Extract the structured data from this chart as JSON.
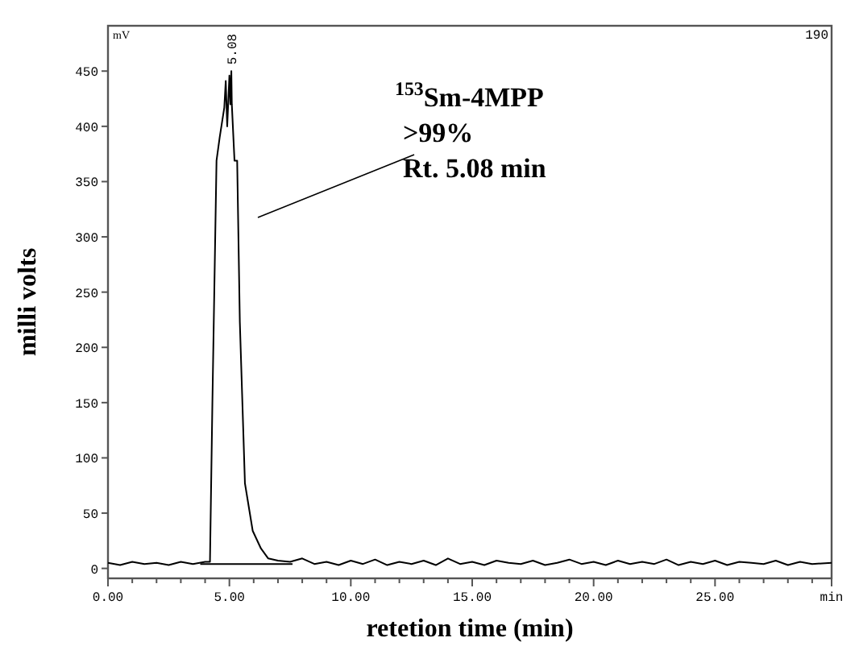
{
  "chart_data": {
    "type": "line",
    "xlabel": "retetion time (min)",
    "ylabel": "milli volts",
    "xlim": [
      0,
      29.8
    ],
    "ylim": [
      -9,
      491
    ],
    "xticks": [
      {
        "value": 0,
        "label": "0.00"
      },
      {
        "value": 1,
        "label": null
      },
      {
        "value": 2,
        "label": null
      },
      {
        "value": 3,
        "label": null
      },
      {
        "value": 4,
        "label": null
      },
      {
        "value": 5,
        "label": "5.00"
      },
      {
        "value": 6,
        "label": null
      },
      {
        "value": 7,
        "label": null
      },
      {
        "value": 8,
        "label": null
      },
      {
        "value": 9,
        "label": null
      },
      {
        "value": 10,
        "label": "10.00"
      },
      {
        "value": 11,
        "label": null
      },
      {
        "value": 12,
        "label": null
      },
      {
        "value": 13,
        "label": null
      },
      {
        "value": 14,
        "label": null
      },
      {
        "value": 15,
        "label": "15.00"
      },
      {
        "value": 16,
        "label": null
      },
      {
        "value": 17,
        "label": null
      },
      {
        "value": 18,
        "label": null
      },
      {
        "value": 19,
        "label": null
      },
      {
        "value": 20,
        "label": "20.00"
      },
      {
        "value": 21,
        "label": null
      },
      {
        "value": 22,
        "label": null
      },
      {
        "value": 23,
        "label": null
      },
      {
        "value": 24,
        "label": null
      },
      {
        "value": 25,
        "label": "25.00"
      },
      {
        "value": 26,
        "label": null
      },
      {
        "value": 27,
        "label": null
      },
      {
        "value": 28,
        "label": null
      },
      {
        "value": 29,
        "label": null
      },
      {
        "value": 29.8,
        "label": "min"
      }
    ],
    "yticks": [
      0,
      50,
      100,
      150,
      200,
      250,
      300,
      350,
      400,
      450
    ],
    "grid": false,
    "marker": "none",
    "line_style": "solid",
    "series": [
      {
        "color": "#000000",
        "x": [
          0,
          0.5,
          1,
          1.5,
          2,
          2.5,
          3,
          3.5,
          4,
          4.2,
          4.3,
          4.47,
          4.6,
          4.79,
          4.85,
          4.91,
          5.0,
          5.04,
          5.08,
          5.1,
          5.21,
          5.32,
          5.43,
          5.64,
          5.96,
          6.3,
          6.6,
          7.0,
          7.5,
          8,
          8.5,
          9,
          9.5,
          10,
          10.5,
          11,
          11.5,
          12,
          12.5,
          13,
          13.5,
          14,
          14.5,
          15,
          15.5,
          16,
          16.5,
          17,
          17.5,
          18,
          18.5,
          19,
          19.5,
          20,
          20.5,
          21,
          21.5,
          22,
          22.5,
          23,
          23.5,
          24,
          24.5,
          25,
          25.5,
          26,
          26.5,
          27,
          27.5,
          28,
          28.5,
          29,
          29.8
        ],
        "values": [
          5,
          3,
          6,
          4,
          5,
          3,
          6,
          4,
          6,
          6,
          150,
          369,
          390,
          417,
          441,
          400,
          446,
          420,
          450,
          420,
          369,
          369,
          223,
          77,
          34,
          18,
          9,
          7,
          6,
          9,
          4,
          6,
          3,
          7,
          4,
          8,
          3,
          6,
          4,
          7,
          3,
          9,
          4,
          6,
          3,
          7,
          5,
          4,
          7,
          3,
          5,
          8,
          4,
          6,
          3,
          7,
          4,
          6,
          4,
          8,
          3,
          6,
          4,
          7,
          3,
          6,
          5,
          4,
          7,
          3,
          6,
          4,
          5
        ]
      },
      {
        "color": "#000000",
        "x": [
          3.8,
          7.6
        ],
        "values": [
          4,
          4
        ]
      }
    ],
    "annotations": [
      {
        "text": "5.08",
        "x": 5.08,
        "y": 450
      },
      "$^{153}$Sm-4MPP\n>99%\nRt. 5.08 min",
      "mV",
      "190"
    ]
  }
}
